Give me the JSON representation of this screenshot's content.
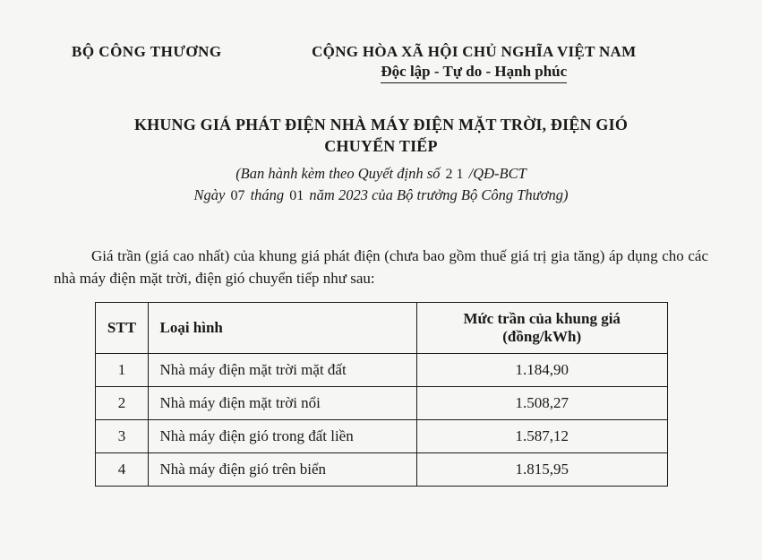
{
  "header": {
    "ministry": "BỘ CÔNG THƯƠNG",
    "republic_line1": "CỘNG HÒA XÃ HỘI CHỦ NGHĨA VIỆT NAM",
    "republic_line2": "Độc lập - Tự do - Hạnh phúc"
  },
  "title": {
    "line1": "KHUNG GIÁ PHÁT ĐIỆN NHÀ MÁY ĐIỆN MẶT TRỜI, ĐIỆN GIÓ",
    "line2": "CHUYỂN TIẾP"
  },
  "subtitle": {
    "prefix": "(Ban hành kèm theo Quyết định số",
    "decision_no": "2 1",
    "decision_suffix": "/QĐ-BCT",
    "line2_a": "Ngày",
    "day": "07",
    "line2_b": "tháng",
    "month": "01",
    "line2_c": "năm 2023 của Bộ trưởng Bộ Công Thương)"
  },
  "body": "Giá trần (giá cao nhất) của khung giá phát điện (chưa bao gồm thuế giá trị gia tăng) áp dụng cho các nhà máy điện mặt trời, điện gió chuyển tiếp như sau:",
  "table": {
    "headers": {
      "stt": "STT",
      "type": "Loại hình",
      "price": "Mức trần của khung giá (đồng/kWh)"
    },
    "rows": [
      {
        "stt": "1",
        "type": "Nhà máy điện mặt trời mặt đất",
        "price": "1.184,90"
      },
      {
        "stt": "2",
        "type": "Nhà máy điện mặt trời nổi",
        "price": "1.508,27"
      },
      {
        "stt": "3",
        "type": "Nhà máy điện gió trong đất liền",
        "price": "1.587,12"
      },
      {
        "stt": "4",
        "type": "Nhà máy điện gió trên biển",
        "price": "1.815,95"
      }
    ]
  }
}
